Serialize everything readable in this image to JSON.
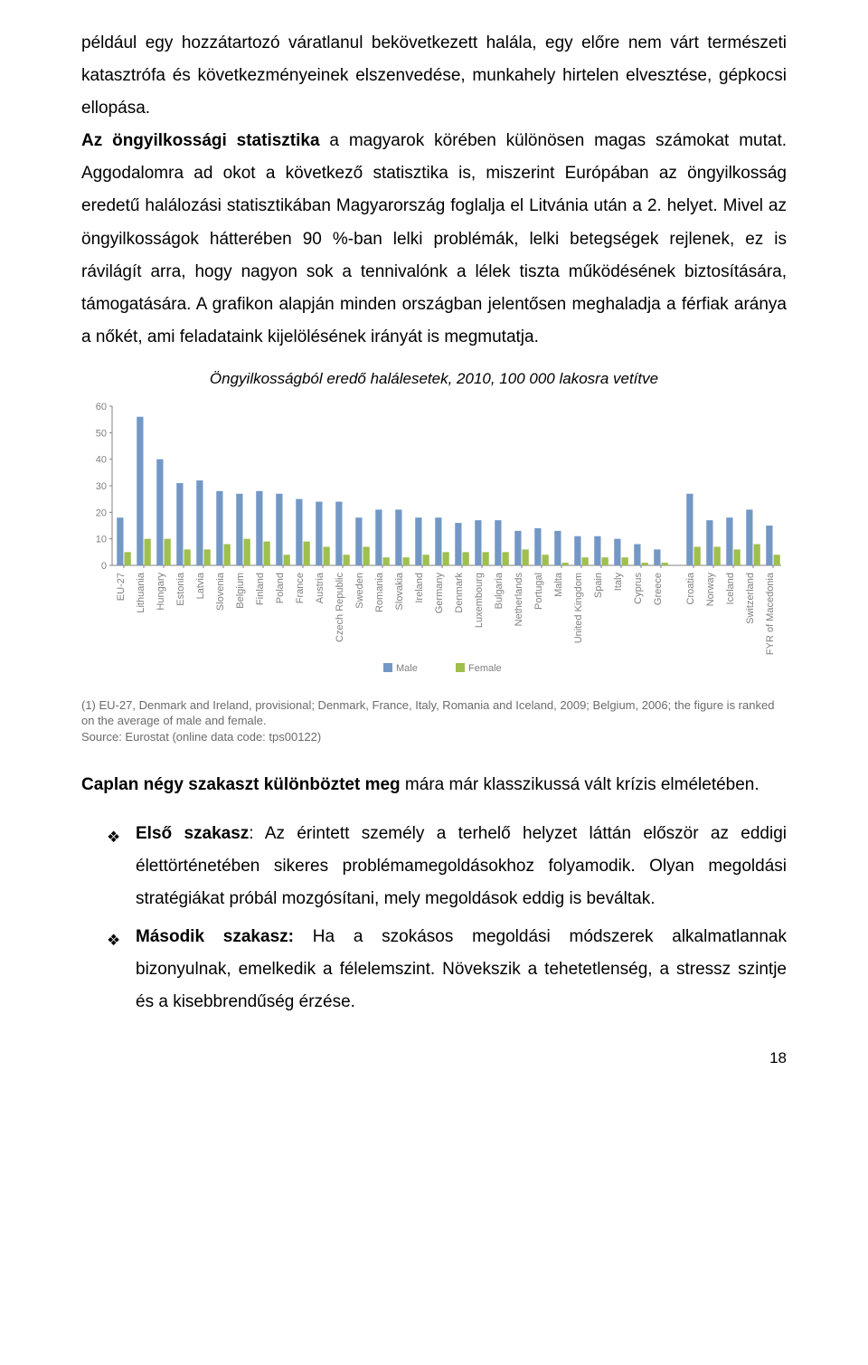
{
  "paragraphs": {
    "p1a": "például egy hozzátartozó váratlanul bekövetkezett halála, egy előre nem várt természeti katasztrófa és következményeinek elszenvedése, munkahely hirtelen elvesztése, gépkocsi ellopása.",
    "p1b_bold": "Az öngyilkossági statisztika",
    "p1c": "  a magyarok körében különösen magas számokat mutat. Aggodalomra ad okot a következő statisztika is, miszerint Európában az öngyilkosság eredetű halálozási statisztikában Magyarország foglalja el Litvánia után a 2. helyet. Mivel az öngyilkosságok hátterében 90 %-ban lelki problémák, lelki betegségek rejlenek, ez is rávilágít arra, hogy nagyon sok a tennivalónk a lélek tiszta működésének biztosítására, támogatására. A grafikon alapján minden országban jelentősen meghaladja a férfiak aránya a nőkét, ami feladataink kijelölésének irányát is megmutatja.",
    "chart_title": "Öngyilkosságból eredő halálesetek, 2010, 100 000 lakosra vetítve",
    "footnote1": "(1) EU-27, Denmark and Ireland, provisional; Denmark, France, Italy, Romania and Iceland, 2009; Belgium, 2006; the figure is ranked on the average of male and female.",
    "footnote2": "Source: Eurostat (online data code: tps00122)",
    "p2_bold": "Caplan négy szakaszt különböztet meg",
    "p2_rest": " mára már klasszikussá vált krízis elméletében.",
    "item1_lead": "Első szakasz",
    "item1_rest": ": Az érintett személy a terhelő helyzet láttán először az eddigi élettörténetében sikeres problémamegoldásokhoz folyamodik. Olyan megoldási stratégiákat próbál mozgósítani, mely megoldások eddig is beváltak.",
    "item2_lead": "Második szakasz:",
    "item2_rest": " Ha a szokásos megoldási módszerek alkalmatlannak bizonyulnak, emelkedik a félelemszint. Növekszik a tehetetlenség, a stressz szintje és a kisebbrendűség érzése.",
    "page_number": "18"
  },
  "chart": {
    "type": "bar",
    "legend": {
      "male": "Male",
      "female": "Female"
    },
    "colors": {
      "male": "#7398c6",
      "female": "#9fbf4e",
      "axis": "#808080",
      "tick_text": "#808080",
      "grid": "#ffffff",
      "background": "#ffffff"
    },
    "ylim": [
      0,
      60
    ],
    "ytick_step": 10,
    "yticks": [
      0,
      10,
      20,
      30,
      40,
      50,
      60
    ],
    "label_fontsize": 11,
    "tick_fontsize": 11,
    "categories": [
      "EU-27",
      "Lithuania",
      "Hungary",
      "Estonia",
      "Latvia",
      "Slovenia",
      "Belgium",
      "Finland",
      "Poland",
      "France",
      "Austria",
      "Czech Republic",
      "Sweden",
      "Romania",
      "Slovakia",
      "Ireland",
      "Germany",
      "Denmark",
      "Luxembourg",
      "Bulgaria",
      "Netherlands",
      "Portugal",
      "Malta",
      "United Kingdom",
      "Spain",
      "Italy",
      "Cyprus",
      "Greece",
      "Croatia",
      "Norway",
      "Iceland",
      "Switzerland",
      "FYR of Macedonia"
    ],
    "male": [
      18,
      56,
      40,
      31,
      32,
      28,
      27,
      28,
      27,
      25,
      24,
      24,
      18,
      21,
      21,
      18,
      18,
      16,
      17,
      17,
      13,
      14,
      13,
      11,
      11,
      10,
      8,
      6,
      27,
      17,
      18,
      21,
      15
    ],
    "female": [
      5,
      10,
      10,
      6,
      6,
      8,
      10,
      9,
      4,
      9,
      7,
      4,
      7,
      3,
      3,
      4,
      5,
      5,
      5,
      5,
      6,
      4,
      1,
      3,
      3,
      3,
      1,
      1,
      7,
      7,
      6,
      8,
      4
    ],
    "gap_after_index": 27
  }
}
